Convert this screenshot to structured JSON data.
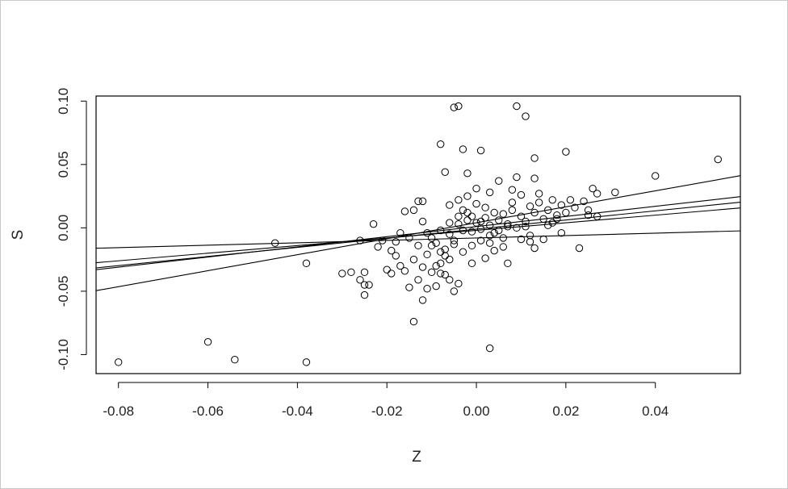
{
  "chart_data": {
    "type": "scatter",
    "xlabel": "Z",
    "ylabel": "S",
    "xlim": [
      -0.085,
      0.059
    ],
    "ylim": [
      -0.115,
      0.104
    ],
    "x_ticks": [
      -0.08,
      -0.06,
      -0.04,
      -0.02,
      0.0,
      0.02,
      0.04
    ],
    "x_tick_labels": [
      "-0.08",
      "-0.06",
      "-0.04",
      "-0.02",
      "0.00",
      "0.02",
      "0.04"
    ],
    "y_ticks": [
      -0.1,
      -0.05,
      0.0,
      0.05,
      0.1
    ],
    "y_tick_labels": [
      "-0.10",
      "-0.05",
      "0.00",
      "0.05",
      "0.10"
    ],
    "grid": false,
    "legend": "none",
    "colors": {
      "points": "#000000",
      "lines": "#000000",
      "box": "#000000"
    },
    "lines": [
      {
        "intercept": 0.004,
        "slope": 0.63
      },
      {
        "intercept": 0.001,
        "slope": 0.4
      },
      {
        "intercept": -0.001,
        "slope": 0.36
      },
      {
        "intercept": -0.002,
        "slope": 0.3
      },
      {
        "intercept": -0.008,
        "slope": 0.095
      }
    ],
    "points": [
      [
        -0.08,
        -0.106
      ],
      [
        -0.06,
        -0.09
      ],
      [
        -0.054,
        -0.104
      ],
      [
        -0.038,
        -0.106
      ],
      [
        -0.045,
        -0.012
      ],
      [
        -0.038,
        -0.028
      ],
      [
        -0.03,
        -0.036
      ],
      [
        -0.028,
        -0.035
      ],
      [
        -0.026,
        -0.041
      ],
      [
        -0.025,
        -0.045
      ],
      [
        -0.024,
        -0.045
      ],
      [
        -0.025,
        -0.053
      ],
      [
        -0.025,
        -0.035
      ],
      [
        -0.026,
        -0.01
      ],
      [
        -0.023,
        0.003
      ],
      [
        -0.021,
        -0.01
      ],
      [
        -0.022,
        -0.015
      ],
      [
        -0.02,
        -0.033
      ],
      [
        -0.019,
        -0.036
      ],
      [
        -0.018,
        -0.022
      ],
      [
        -0.017,
        -0.03
      ],
      [
        -0.016,
        -0.034
      ],
      [
        -0.015,
        -0.047
      ],
      [
        -0.014,
        -0.074
      ],
      [
        -0.013,
        -0.041
      ],
      [
        -0.012,
        -0.057
      ],
      [
        -0.011,
        -0.048
      ],
      [
        -0.01,
        -0.035
      ],
      [
        -0.009,
        -0.046
      ],
      [
        -0.008,
        -0.036
      ],
      [
        -0.007,
        -0.037
      ],
      [
        -0.006,
        -0.041
      ],
      [
        -0.005,
        -0.05
      ],
      [
        -0.004,
        -0.044
      ],
      [
        -0.005,
        0.095
      ],
      [
        -0.004,
        0.096
      ],
      [
        0.009,
        0.096
      ],
      [
        0.011,
        0.088
      ],
      [
        -0.008,
        0.066
      ],
      [
        -0.003,
        0.062
      ],
      [
        0.001,
        0.061
      ],
      [
        0.013,
        0.055
      ],
      [
        0.02,
        0.06
      ],
      [
        -0.007,
        0.044
      ],
      [
        -0.002,
        0.043
      ],
      [
        0.04,
        0.041
      ],
      [
        0.054,
        0.054
      ],
      [
        0.031,
        0.028
      ],
      [
        0.026,
        0.031
      ],
      [
        0.027,
        0.027
      ],
      [
        0.025,
        0.01
      ],
      [
        0.027,
        0.009
      ],
      [
        0.023,
        -0.016
      ],
      [
        0.013,
        -0.016
      ],
      [
        0.007,
        -0.028
      ],
      [
        0.003,
        -0.095
      ],
      [
        -0.016,
        0.013
      ],
      [
        -0.013,
        0.021
      ],
      [
        -0.012,
        0.021
      ],
      [
        -0.014,
        0.014
      ],
      [
        -0.012,
        0.005
      ],
      [
        -0.011,
        -0.004
      ],
      [
        -0.01,
        -0.008
      ],
      [
        -0.009,
        -0.012
      ],
      [
        -0.008,
        -0.019
      ],
      [
        -0.007,
        -0.022
      ],
      [
        -0.006,
        -0.005
      ],
      [
        -0.005,
        -0.01
      ],
      [
        -0.004,
        0.003
      ],
      [
        -0.003,
        -0.002
      ],
      [
        -0.002,
        0.006
      ],
      [
        -0.001,
        -0.003
      ],
      [
        0.0,
        0.004
      ],
      [
        0.001,
        -0.001
      ],
      [
        0.002,
        0.008
      ],
      [
        0.003,
        0.002
      ],
      [
        0.004,
        -0.004
      ],
      [
        0.005,
        0.006
      ],
      [
        0.006,
        0.011
      ],
      [
        0.007,
        0.003
      ],
      [
        0.008,
        0.014
      ],
      [
        0.009,
        0.0
      ],
      [
        0.01,
        0.009
      ],
      [
        0.011,
        0.005
      ],
      [
        0.012,
        0.017
      ],
      [
        0.013,
        0.012
      ],
      [
        0.014,
        0.02
      ],
      [
        0.015,
        0.007
      ],
      [
        0.016,
        0.014
      ],
      [
        0.017,
        0.022
      ],
      [
        0.018,
        0.01
      ],
      [
        0.019,
        0.018
      ],
      [
        0.021,
        0.022
      ],
      [
        0.022,
        0.016
      ],
      [
        -0.006,
        0.018
      ],
      [
        -0.004,
        0.022
      ],
      [
        -0.002,
        0.025
      ],
      [
        0.0,
        0.031
      ],
      [
        0.003,
        0.028
      ],
      [
        0.005,
        0.037
      ],
      [
        0.008,
        0.03
      ],
      [
        0.01,
        0.026
      ],
      [
        0.013,
        0.039
      ],
      [
        0.009,
        0.04
      ],
      [
        -0.001,
        -0.028
      ],
      [
        0.002,
        -0.024
      ],
      [
        0.004,
        -0.018
      ],
      [
        0.006,
        -0.015
      ],
      [
        0.01,
        -0.009
      ],
      [
        0.012,
        -0.006
      ],
      [
        -0.015,
        -0.008
      ],
      [
        -0.013,
        -0.014
      ],
      [
        -0.017,
        -0.004
      ],
      [
        -0.018,
        -0.011
      ],
      [
        -0.019,
        -0.018
      ],
      [
        -0.014,
        -0.025
      ],
      [
        -0.012,
        -0.031
      ],
      [
        -0.008,
        -0.028
      ],
      [
        -0.006,
        -0.025
      ],
      [
        -0.003,
        -0.019
      ],
      [
        -0.001,
        -0.014
      ],
      [
        0.001,
        -0.01
      ],
      [
        0.003,
        -0.006
      ],
      [
        0.005,
        -0.002
      ],
      [
        0.007,
        0.001
      ],
      [
        0.006,
        -0.008
      ],
      [
        0.004,
        0.012
      ],
      [
        0.002,
        0.016
      ],
      [
        0.0,
        0.019
      ],
      [
        -0.002,
        0.012
      ],
      [
        -0.004,
        0.009
      ],
      [
        -0.006,
        0.004
      ],
      [
        -0.008,
        -0.002
      ],
      [
        -0.01,
        -0.014
      ],
      [
        -0.011,
        -0.021
      ],
      [
        -0.009,
        -0.03
      ],
      [
        -0.007,
        -0.017
      ],
      [
        -0.005,
        -0.013
      ],
      [
        0.011,
        0.001
      ],
      [
        0.012,
        -0.011
      ],
      [
        0.014,
        0.027
      ],
      [
        0.016,
        0.002
      ],
      [
        0.018,
        0.007
      ],
      [
        0.02,
        0.012
      ],
      [
        0.024,
        0.021
      ],
      [
        0.025,
        0.014
      ],
      [
        0.015,
        -0.009
      ],
      [
        0.017,
        0.004
      ],
      [
        0.019,
        -0.004
      ],
      [
        0.008,
        0.02
      ],
      [
        0.001,
        0.005
      ],
      [
        -0.001,
        0.009
      ],
      [
        0.003,
        -0.012
      ],
      [
        -0.003,
        0.014
      ]
    ]
  }
}
